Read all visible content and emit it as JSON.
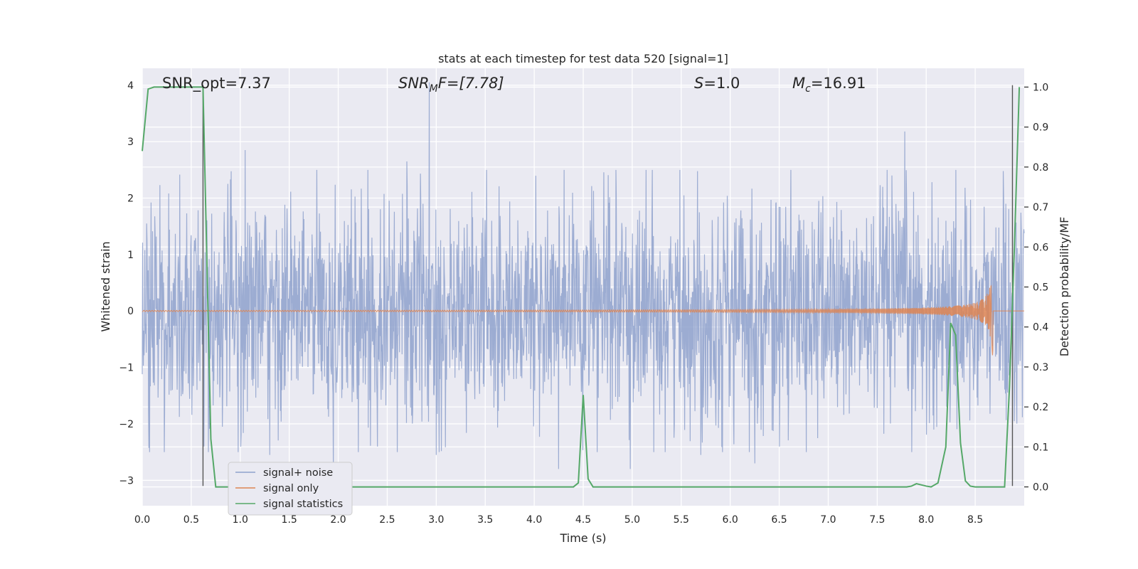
{
  "chart_data": {
    "type": "line",
    "title": "stats at each timestep for test data 520 [signal=1]",
    "xlabel": "Time (s)",
    "ylabel": "Whitened strain",
    "y2label": "Detection probability/MF",
    "xlim": [
      0,
      9.0
    ],
    "ylim": [
      -3.45,
      4.3
    ],
    "y2lim": [
      -0.047,
      1.047
    ],
    "x_ticks": [
      0,
      0.5,
      1.0,
      1.5,
      2.0,
      2.5,
      3.0,
      3.5,
      4.0,
      4.5,
      5.0,
      5.5,
      6.0,
      6.5,
      7.0,
      7.5,
      8.0,
      8.5
    ],
    "x_tick_labels": [
      "0.0",
      "0.5",
      "1.0",
      "1.5",
      "2.0",
      "2.5",
      "3.0",
      "3.5",
      "4.0",
      "4.5",
      "5.0",
      "5.5",
      "6.0",
      "6.5",
      "7.0",
      "7.5",
      "8.0",
      "8.5"
    ],
    "y_ticks": [
      -3,
      -2,
      -1,
      0,
      1,
      2,
      3,
      4
    ],
    "y_tick_labels": [
      "−3",
      "−2",
      "−1",
      "0",
      "1",
      "2",
      "3",
      "4"
    ],
    "y2_ticks": [
      0.0,
      0.1,
      0.2,
      0.3,
      0.4,
      0.5,
      0.6,
      0.7,
      0.8,
      0.9,
      1.0
    ],
    "y2_tick_labels": [
      "0.0",
      "0.1",
      "0.2",
      "0.3",
      "0.4",
      "0.5",
      "0.6",
      "0.7",
      "0.8",
      "0.9",
      "1.0"
    ],
    "grid": true,
    "legend_placement": "lower-left",
    "annotations": {
      "snr_opt": "SNR_opt=7.37",
      "snr_mf_base": "SNR",
      "snr_mf_sub": "M",
      "snr_mf_rest": "F=[7.78]",
      "s_var": "S",
      "s_val": "=1.0",
      "mc_var": "M",
      "mc_sub": "c",
      "mc_val": "=16.91"
    },
    "vlines_x": [
      0.62,
      8.88
    ],
    "series": [
      {
        "name": "signal+ noise",
        "color": "#8ea1cc",
        "axis": "left",
        "noise_envelope": {
          "x_start": 0.0,
          "x_end": 9.0,
          "typical_amplitude": 1.1,
          "peak_values": [
            [
              2.93,
              4.05
            ],
            [
              3.0,
              2.35
            ],
            [
              1.05,
              2.85
            ],
            [
              7.78,
              3.18
            ],
            [
              2.7,
              2.65
            ],
            [
              5.7,
              -2.55
            ],
            [
              3.0,
              -2.55
            ],
            [
              4.25,
              -2.8
            ],
            [
              4.98,
              -2.8
            ],
            [
              6.25,
              -2.7
            ],
            [
              1.95,
              -2.85
            ],
            [
              1.3,
              -2.55
            ]
          ]
        }
      },
      {
        "name": "signal only",
        "color": "#dd8452",
        "axis": "left",
        "chirp": {
          "x_start": 0.0,
          "x_merger": 8.68,
          "amplitude_at_merger": 0.92
        }
      },
      {
        "name": "signal statistics",
        "color": "#55a868",
        "axis": "right",
        "x": [
          0.0,
          0.06,
          0.12,
          0.6,
          0.62,
          0.7,
          0.75,
          0.8,
          3.4,
          3.5,
          4.4,
          4.45,
          4.5,
          4.55,
          4.6,
          4.65,
          7.7,
          7.8,
          7.85,
          7.9,
          8.0,
          8.05,
          8.12,
          8.2,
          8.25,
          8.3,
          8.35,
          8.4,
          8.45,
          8.5,
          8.55,
          8.6,
          8.7,
          8.8,
          8.85,
          8.9,
          8.95
        ],
        "y": [
          0.84,
          0.995,
          1.0,
          1.0,
          1.0,
          0.12,
          0.0,
          0.0,
          0.0,
          0.0,
          0.0,
          0.01,
          0.23,
          0.02,
          0.0,
          0.0,
          0.0,
          0.0,
          0.002,
          0.008,
          0.002,
          0.0,
          0.01,
          0.1,
          0.41,
          0.38,
          0.11,
          0.015,
          0.002,
          0.0,
          0.0,
          0.0,
          0.0,
          0.0,
          0.25,
          0.6,
          1.0
        ]
      }
    ]
  }
}
